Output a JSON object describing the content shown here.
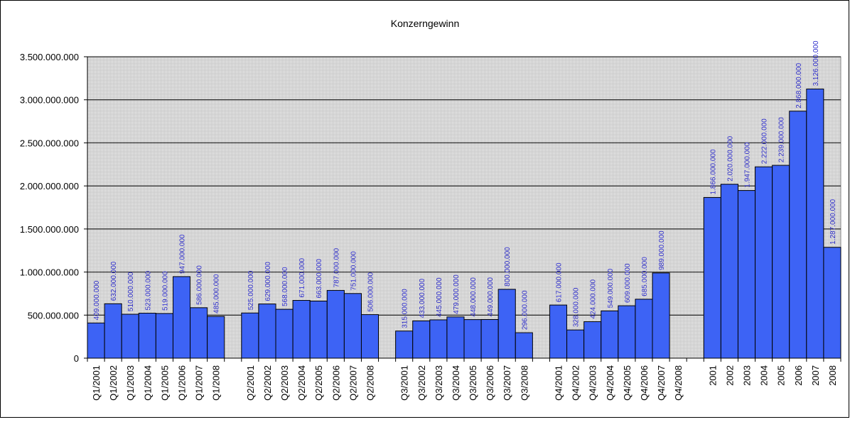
{
  "chart_data": {
    "type": "bar",
    "title": "Konzerngewinn",
    "xlabel": "",
    "ylabel": "",
    "ylim": [
      0,
      3500000000
    ],
    "yticks": [
      0,
      500000000,
      1000000000,
      1500000000,
      2000000000,
      2500000000,
      3000000000,
      3500000000
    ],
    "ytick_labels": [
      "0",
      "500.000.000",
      "1.000.000.000",
      "1.500.000.000",
      "2.000.000.000",
      "2.500.000.000",
      "3.000.000.000",
      "3.500.000.000"
    ],
    "grid": true,
    "legend": "none",
    "colors": {
      "bar_fill": "#3d63f5",
      "bar_stroke": "#000000",
      "data_label": "#2f2fcc",
      "plot_bg": "#c8c8c8",
      "grid": "#000000"
    },
    "categories": [
      "Q1/2001",
      "Q1/2002",
      "Q1/2003",
      "Q1/2004",
      "Q1/2005",
      "Q1/2006",
      "Q1/2007",
      "Q1/2008",
      "",
      "Q2/2001",
      "Q2/2002",
      "Q2/2003",
      "Q2/2004",
      "Q2/2005",
      "Q2/2006",
      "Q2/2007",
      "Q2/2008",
      "",
      "Q3/2001",
      "Q3/2002",
      "Q3/2003",
      "Q3/2004",
      "Q3/2005",
      "Q3/2006",
      "Q3/2007",
      "Q3/2008",
      "",
      "Q4/2001",
      "Q4/2002",
      "Q4/2003",
      "Q4/2004",
      "Q4/2005",
      "Q4/2006",
      "Q4/2007",
      "Q4/2008",
      "",
      "2001",
      "2002",
      "2003",
      "2004",
      "2005",
      "2006",
      "2007",
      "2008"
    ],
    "values": [
      409000000,
      632000000,
      510000000,
      523000000,
      519000000,
      947000000,
      586000000,
      485000000,
      null,
      525000000,
      629000000,
      568000000,
      671000000,
      663000000,
      787000000,
      751000000,
      506000000,
      null,
      315000000,
      433000000,
      445000000,
      479000000,
      448000000,
      449000000,
      800000000,
      296000000,
      null,
      617000000,
      328000000,
      424000000,
      549000000,
      609000000,
      685000000,
      989000000,
      null,
      null,
      1866000000,
      2020000000,
      1947000000,
      2222000000,
      2239000000,
      2868000000,
      3126000000,
      1287000000
    ],
    "data_labels": [
      "409.000.000",
      "632.000.000",
      "510.000.000",
      "523.000.000",
      "519.000.000",
      "947.000.000",
      "586.000.000",
      "485.000.000",
      "",
      "525.000.000",
      "629.000.000",
      "568.000.000",
      "671.000.000",
      "663.000.000",
      "787.000.000",
      "751.000.000",
      "506.000.000",
      "",
      "315.000.000",
      "433.000.000",
      "445.000.000",
      "479.000.000",
      "448.000.000",
      "449.000.000",
      "800.000.000",
      "296.000.000",
      "",
      "617.000.000",
      "328.000.000",
      "424.000.000",
      "549.000.000",
      "609.000.000",
      "685.000.000",
      "989.000.000",
      "",
      "",
      "1.866.000.000",
      "2.020.000.000",
      "1.947.000.000",
      "2.222.000.000",
      "2.239.000.000",
      "2.868.000.000",
      "3.126.000.000",
      "1.287.000.000"
    ]
  }
}
